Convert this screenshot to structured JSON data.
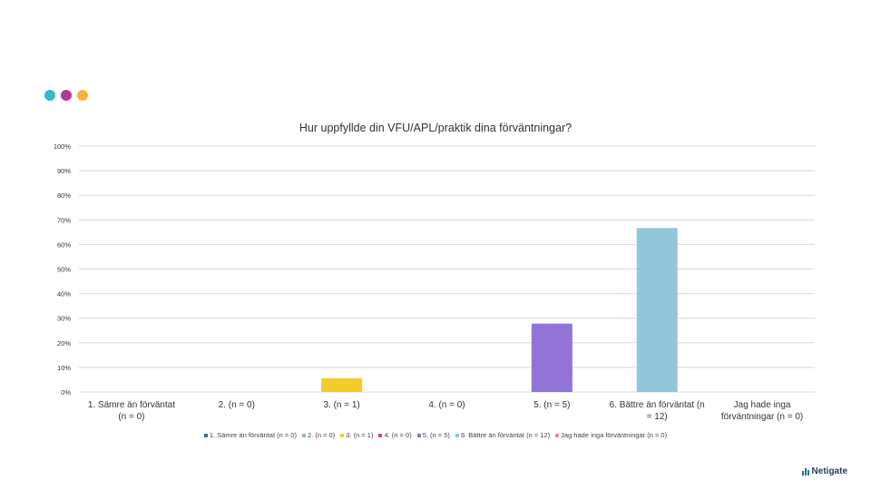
{
  "header": {
    "dot_colors": [
      "#35b9c9",
      "#b0389b",
      "#f4b33f"
    ]
  },
  "chart_data": {
    "type": "bar",
    "title": "Hur uppfyllde din VFU/APL/praktik dina förväntningar?",
    "categories": [
      "1. Sämre än förväntat (n = 0)",
      "2. (n = 0)",
      "3. (n = 1)",
      "4. (n = 0)",
      "5. (n = 5)",
      "6. Bättre än förväntat (n = 12)",
      "Jag hade inga förväntningar (n = 0)"
    ],
    "category_lines": [
      [
        "1. Sämre än förväntat",
        "(n = 0)"
      ],
      [
        "2. (n = 0)"
      ],
      [
        "3. (n = 1)"
      ],
      [
        "4. (n = 0)"
      ],
      [
        "5. (n = 5)"
      ],
      [
        "6. Bättre än förväntat (n",
        "= 12)"
      ],
      [
        "Jag hade inga",
        "förväntningar (n = 0)"
      ]
    ],
    "values": [
      0,
      0,
      5.6,
      0,
      27.8,
      66.7,
      0
    ],
    "colors": [
      "#2e6f9e",
      "#8ab6d6",
      "#f5cc2a",
      "#d94c5c",
      "#9273d6",
      "#93c6d8",
      "#e28a9a"
    ],
    "ylim": [
      0,
      100
    ],
    "yticks": [
      "0%",
      "10%",
      "20%",
      "30%",
      "40%",
      "50%",
      "60%",
      "70%",
      "80%",
      "90%",
      "100%"
    ],
    "grid": true,
    "legend_position": "bottom",
    "legend": [
      "1. Sämre än förväntat (n = 0)",
      "2. (n = 0)",
      "3. (n = 1)",
      "4. (n = 0)",
      "5. (n = 5)",
      "6. Bättre än förväntat (n = 12)",
      "Jag hade inga förväntningar (n = 0)"
    ]
  },
  "footer": {
    "logo_text": "Netigate"
  }
}
